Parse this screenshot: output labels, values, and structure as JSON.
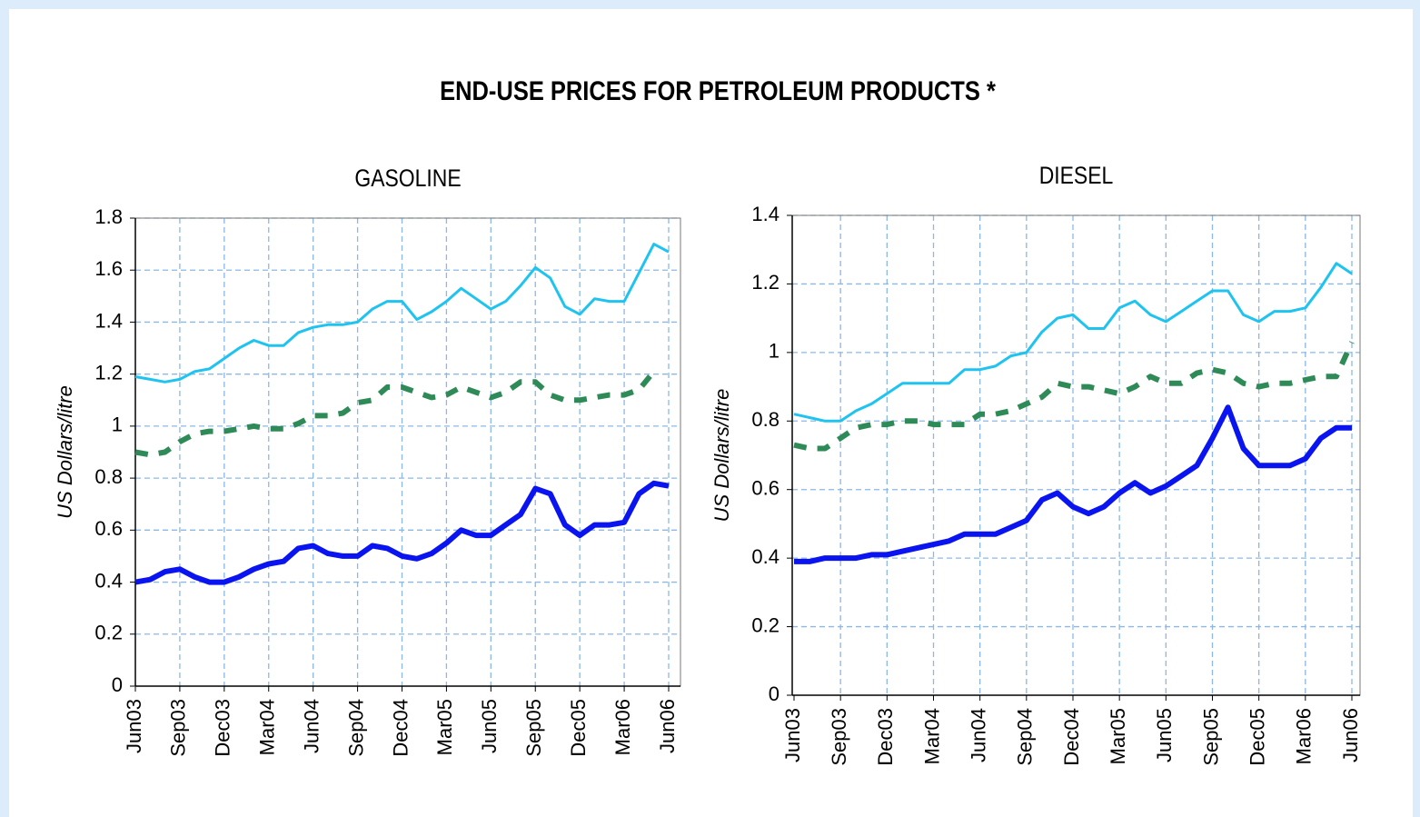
{
  "title": "END-USE PRICES FOR PETROLEUM PRODUCTS *",
  "chart_data": [
    {
      "type": "line",
      "title": "GASOLINE",
      "y_label": "US Dollars/litre",
      "categories": [
        "Jun03",
        null,
        null,
        "Sep03",
        null,
        null,
        "Dec03",
        null,
        null,
        "Mar04",
        null,
        null,
        "Jun04",
        null,
        null,
        "Sep04",
        null,
        null,
        "Dec04",
        null,
        null,
        "Mar05",
        null,
        null,
        "Jun05",
        null,
        null,
        "Sep05",
        null,
        null,
        "Dec05",
        null,
        null,
        "Mar06",
        null,
        null,
        "Jun06"
      ],
      "ylim": [
        0,
        1.8
      ],
      "yticks": [
        0,
        0.2,
        0.4,
        0.6,
        0.8,
        1,
        1.2,
        1.4,
        1.6,
        1.8
      ],
      "grid": true,
      "series": [
        {
          "color": "#1ec3f0",
          "style": "solid",
          "values": [
            1.19,
            1.18,
            1.17,
            1.18,
            1.21,
            1.22,
            1.26,
            1.3,
            1.33,
            1.31,
            1.31,
            1.36,
            1.38,
            1.39,
            1.39,
            1.4,
            1.45,
            1.48,
            1.48,
            1.41,
            1.44,
            1.48,
            1.53,
            1.49,
            1.45,
            1.48,
            1.54,
            1.61,
            1.57,
            1.46,
            1.43,
            1.49,
            1.48,
            1.48,
            1.59,
            1.7,
            1.67
          ]
        },
        {
          "color": "#2e8b57",
          "style": "dashed",
          "values": [
            0.9,
            0.89,
            0.9,
            0.94,
            0.97,
            0.98,
            0.98,
            0.99,
            1.0,
            0.99,
            0.99,
            1.01,
            1.04,
            1.04,
            1.05,
            1.09,
            1.1,
            1.15,
            1.15,
            1.13,
            1.11,
            1.12,
            1.15,
            1.13,
            1.11,
            1.13,
            1.17,
            1.17,
            1.12,
            1.1,
            1.1,
            1.11,
            1.12,
            1.12,
            1.14,
            1.21,
            null
          ]
        },
        {
          "color": "#0a14f0",
          "style": "bold",
          "values": [
            0.4,
            0.41,
            0.44,
            0.45,
            0.42,
            0.4,
            0.4,
            0.42,
            0.45,
            0.47,
            0.48,
            0.53,
            0.54,
            0.51,
            0.5,
            0.5,
            0.54,
            0.53,
            0.5,
            0.49,
            0.51,
            0.55,
            0.6,
            0.58,
            0.58,
            0.62,
            0.66,
            0.76,
            0.74,
            0.62,
            0.58,
            0.62,
            0.62,
            0.63,
            0.74,
            0.78,
            0.77
          ]
        }
      ]
    },
    {
      "type": "line",
      "title": "DIESEL",
      "y_label": "US Dollars/litre",
      "categories": [
        "Jun03",
        null,
        null,
        "Sep03",
        null,
        null,
        "Dec03",
        null,
        null,
        "Mar04",
        null,
        null,
        "Jun04",
        null,
        null,
        "Sep04",
        null,
        null,
        "Dec04",
        null,
        null,
        "Mar05",
        null,
        null,
        "Jun05",
        null,
        null,
        "Sep05",
        null,
        null,
        "Dec05",
        null,
        null,
        "Mar06",
        null,
        null,
        "Jun06"
      ],
      "ylim": [
        0,
        1.4
      ],
      "yticks": [
        0,
        0.2,
        0.4,
        0.6,
        0.8,
        1,
        1.2,
        1.4
      ],
      "grid": true,
      "series": [
        {
          "color": "#1ec3f0",
          "style": "solid",
          "values": [
            0.82,
            0.81,
            0.8,
            0.8,
            0.83,
            0.85,
            0.88,
            0.91,
            0.91,
            0.91,
            0.91,
            0.95,
            0.95,
            0.96,
            0.99,
            1.0,
            1.06,
            1.1,
            1.11,
            1.07,
            1.07,
            1.13,
            1.15,
            1.11,
            1.09,
            1.12,
            1.15,
            1.18,
            1.18,
            1.11,
            1.09,
            1.12,
            1.12,
            1.13,
            1.19,
            1.26,
            1.23
          ]
        },
        {
          "color": "#2e8b57",
          "style": "dashed",
          "values": [
            0.73,
            0.72,
            0.72,
            0.75,
            0.78,
            0.79,
            0.79,
            0.8,
            0.8,
            0.79,
            0.79,
            0.79,
            0.82,
            0.82,
            0.83,
            0.85,
            0.87,
            0.91,
            0.9,
            0.9,
            0.89,
            0.88,
            0.9,
            0.93,
            0.91,
            0.91,
            0.94,
            0.95,
            0.94,
            0.91,
            0.9,
            0.91,
            0.91,
            0.92,
            0.93,
            0.93,
            1.03
          ]
        },
        {
          "color": "#0a14f0",
          "style": "bold",
          "values": [
            0.39,
            0.39,
            0.4,
            0.4,
            0.4,
            0.41,
            0.41,
            0.42,
            0.43,
            0.44,
            0.45,
            0.47,
            0.47,
            0.47,
            0.49,
            0.51,
            0.57,
            0.59,
            0.55,
            0.53,
            0.55,
            0.59,
            0.62,
            0.59,
            0.61,
            0.64,
            0.67,
            0.75,
            0.84,
            0.72,
            0.67,
            0.67,
            0.67,
            0.69,
            0.75,
            0.78,
            0.78
          ]
        }
      ]
    }
  ]
}
